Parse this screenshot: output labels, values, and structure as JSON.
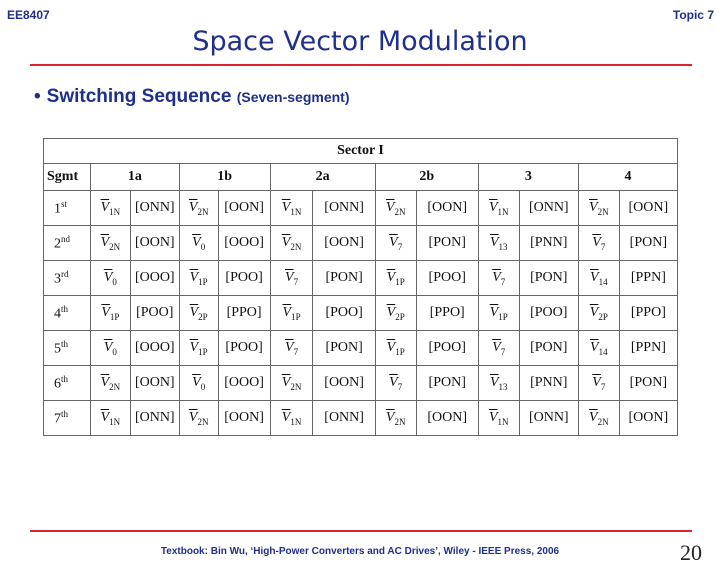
{
  "header": {
    "course": "EE8407",
    "topic": "Topic 7"
  },
  "title": "Space Vector Modulation",
  "bullet": {
    "symbol": "•",
    "main": "Switching Sequence",
    "sub": "(Seven-segment)"
  },
  "table": {
    "sector_label": "Sector I",
    "segment_header": [
      "Sgmt",
      "1a",
      "1b",
      "2a",
      "2b",
      "3",
      "4"
    ],
    "rows": [
      {
        "ord": "1",
        "sup": "st",
        "cells": [
          [
            "V",
            "1N"
          ],
          "[ONN]",
          [
            "V",
            "2N"
          ],
          "[OON]",
          [
            "V",
            "1N"
          ],
          "[ONN]",
          [
            "V",
            "2N"
          ],
          "[OON]",
          [
            "V",
            "1N"
          ],
          "[ONN]",
          [
            "V",
            "2N"
          ],
          "[OON]"
        ]
      },
      {
        "ord": "2",
        "sup": "nd",
        "cells": [
          [
            "V",
            "2N"
          ],
          "[OON]",
          [
            "V",
            "0"
          ],
          "[OOO]",
          [
            "V",
            "2N"
          ],
          "[OON]",
          [
            "V",
            "7"
          ],
          "[PON]",
          [
            "V",
            "13"
          ],
          "[PNN]",
          [
            "V",
            "7"
          ],
          "[PON]"
        ]
      },
      {
        "ord": "3",
        "sup": "rd",
        "cells": [
          [
            "V",
            "0"
          ],
          "[OOO]",
          [
            "V",
            "1P"
          ],
          "[POO]",
          [
            "V",
            "7"
          ],
          "[PON]",
          [
            "V",
            "1P"
          ],
          "[POO]",
          [
            "V",
            "7"
          ],
          "[PON]",
          [
            "V",
            "14"
          ],
          "[PPN]"
        ]
      },
      {
        "ord": "4",
        "sup": "th",
        "cells": [
          [
            "V",
            "1P"
          ],
          "[POO]",
          [
            "V",
            "2P"
          ],
          "[PPO]",
          [
            "V",
            "1P"
          ],
          "[POO]",
          [
            "V",
            "2P"
          ],
          "[PPO]",
          [
            "V",
            "1P"
          ],
          "[POO]",
          [
            "V",
            "2P"
          ],
          "[PPO]"
        ]
      },
      {
        "ord": "5",
        "sup": "th",
        "cells": [
          [
            "V",
            "0"
          ],
          "[OOO]",
          [
            "V",
            "1P"
          ],
          "[POO]",
          [
            "V",
            "7"
          ],
          "[PON]",
          [
            "V",
            "1P"
          ],
          "[POO]",
          [
            "V",
            "7"
          ],
          "[PON]",
          [
            "V",
            "14"
          ],
          "[PPN]"
        ]
      },
      {
        "ord": "6",
        "sup": "th",
        "cells": [
          [
            "V",
            "2N"
          ],
          "[OON]",
          [
            "V",
            "0"
          ],
          "[OOO]",
          [
            "V",
            "2N"
          ],
          "[OON]",
          [
            "V",
            "7"
          ],
          "[PON]",
          [
            "V",
            "13"
          ],
          "[PNN]",
          [
            "V",
            "7"
          ],
          "[PON]"
        ]
      },
      {
        "ord": "7",
        "sup": "th",
        "cells": [
          [
            "V",
            "1N"
          ],
          "[ONN]",
          [
            "V",
            "2N"
          ],
          "[OON]",
          [
            "V",
            "1N"
          ],
          "[ONN]",
          [
            "V",
            "2N"
          ],
          "[OON]",
          [
            "V",
            "1N"
          ],
          "[ONN]",
          [
            "V",
            "2N"
          ],
          "[OON]"
        ]
      }
    ]
  },
  "footer": "Textbook: Bin Wu, ‘High-Power Converters and AC Drives’, Wiley - IEEE Press, 2006",
  "page_number": "20",
  "colors": {
    "accent": "#1f2f8c",
    "rule": "#d9232d"
  }
}
